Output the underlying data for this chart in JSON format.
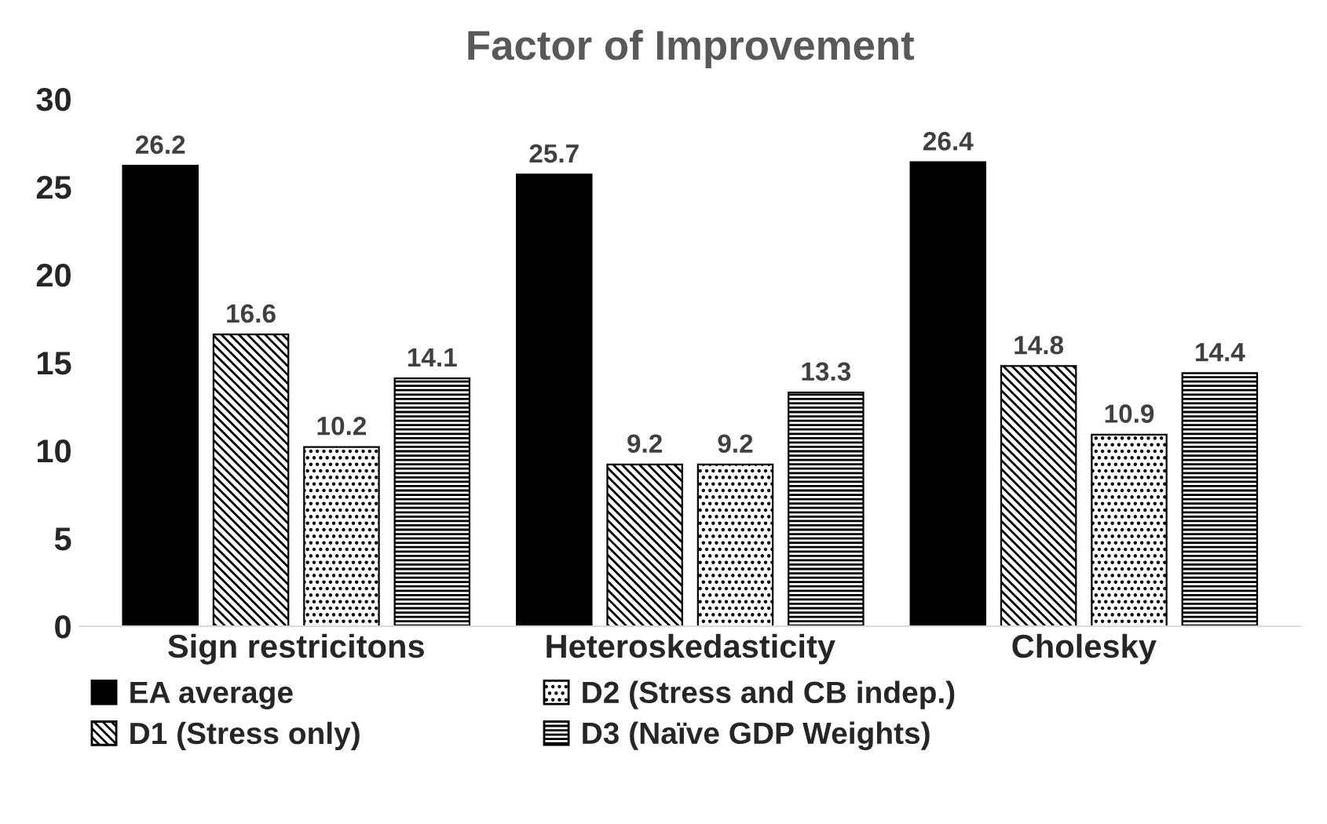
{
  "chart_data": {
    "type": "bar",
    "title": "Factor of Improvement",
    "categories": [
      "Sign restricitons",
      "Heteroskedasticity",
      "Cholesky"
    ],
    "series": [
      {
        "name": "EA average",
        "color": "#000000",
        "values": [
          26.2,
          25.7,
          26.4
        ]
      },
      {
        "name": "D1 (Stress only)",
        "color": "#000000",
        "values": [
          16.6,
          9.2,
          14.8
        ]
      },
      {
        "name": "D2 (Stress and CB indep.)",
        "color": "#000000",
        "values": [
          10.2,
          9.2,
          10.9
        ]
      },
      {
        "name": "D3 (Naïve GDP Weights)",
        "color": "#000000",
        "values": [
          14.1,
          13.3,
          14.4
        ]
      }
    ],
    "ylim": [
      0,
      30
    ],
    "yticks": [
      0,
      5,
      10,
      15,
      20,
      25,
      30
    ],
    "grid": false,
    "legend": "bottom",
    "data_labels": true
  }
}
